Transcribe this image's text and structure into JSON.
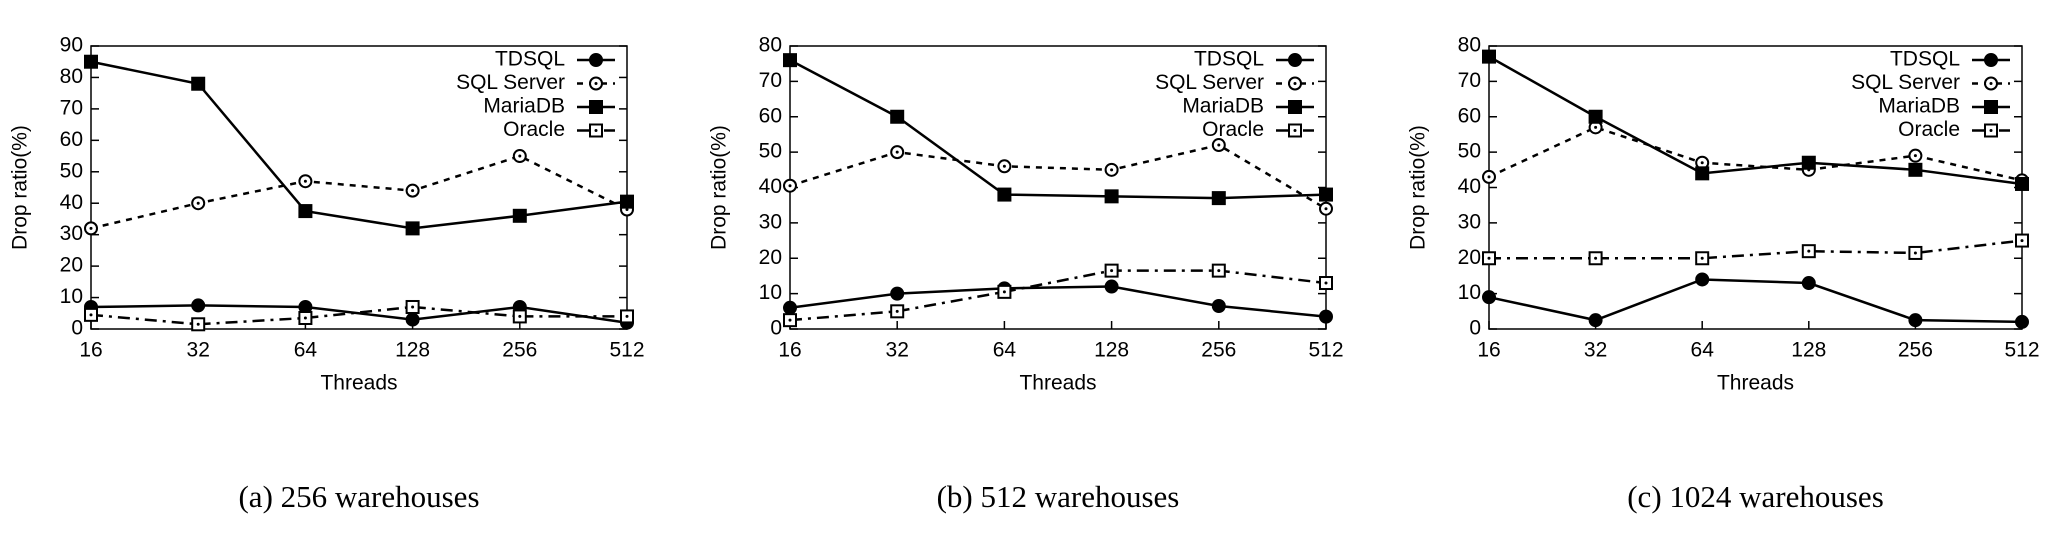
{
  "chart_data": [
    {
      "type": "line",
      "caption": "(a) 256 warehouses",
      "xlabel": "Threads",
      "ylabel": "Drop ratio(%)",
      "categories": [
        "16",
        "32",
        "64",
        "128",
        "256",
        "512"
      ],
      "ylim": [
        0,
        90
      ],
      "yticks": [
        0,
        10,
        20,
        30,
        40,
        50,
        60,
        70,
        80,
        90
      ],
      "legend": "upper right",
      "series": [
        {
          "name": "TDSQL",
          "color": "#000000",
          "dash": "solid",
          "marker": "circle-filled",
          "values": [
            7,
            7.5,
            7,
            3,
            7,
            2
          ]
        },
        {
          "name": "SQL Server",
          "color": "#000000",
          "dash": "dashed",
          "marker": "circle-open",
          "values": [
            32,
            40,
            47,
            44,
            55,
            38
          ]
        },
        {
          "name": "MariaDB",
          "color": "#000000",
          "dash": "solid",
          "marker": "square-filled",
          "values": [
            85,
            78,
            37.5,
            32,
            36,
            40.5
          ]
        },
        {
          "name": "Oracle",
          "color": "#000000",
          "dash": "dashdot",
          "marker": "square-open",
          "values": [
            4.5,
            1.5,
            3.5,
            7,
            4,
            4
          ]
        }
      ]
    },
    {
      "type": "line",
      "caption": "(b) 512 warehouses",
      "xlabel": "Threads",
      "ylabel": "Drop ratio(%)",
      "categories": [
        "16",
        "32",
        "64",
        "128",
        "256",
        "512"
      ],
      "ylim": [
        0,
        80
      ],
      "yticks": [
        0,
        10,
        20,
        30,
        40,
        50,
        60,
        70,
        80
      ],
      "legend": "upper right",
      "series": [
        {
          "name": "TDSQL",
          "color": "#000000",
          "dash": "solid",
          "marker": "circle-filled",
          "values": [
            6,
            10,
            11.5,
            12,
            6.5,
            3.5
          ]
        },
        {
          "name": "SQL Server",
          "color": "#000000",
          "dash": "dashed",
          "marker": "circle-open",
          "values": [
            40.5,
            50,
            46,
            45,
            52,
            34
          ]
        },
        {
          "name": "MariaDB",
          "color": "#000000",
          "dash": "solid",
          "marker": "square-filled",
          "values": [
            76,
            60,
            38,
            37.5,
            37,
            38
          ]
        },
        {
          "name": "Oracle",
          "color": "#000000",
          "dash": "dashdot",
          "marker": "square-open",
          "values": [
            2.5,
            5,
            10.5,
            16.5,
            16.5,
            13
          ]
        }
      ]
    },
    {
      "type": "line",
      "caption": "(c) 1024 warehouses",
      "xlabel": "Threads",
      "ylabel": "Drop ratio(%)",
      "categories": [
        "16",
        "32",
        "64",
        "128",
        "256",
        "512"
      ],
      "ylim": [
        0,
        80
      ],
      "yticks": [
        0,
        10,
        20,
        30,
        40,
        50,
        60,
        70,
        80
      ],
      "legend": "upper right",
      "series": [
        {
          "name": "TDSQL",
          "color": "#000000",
          "dash": "solid",
          "marker": "circle-filled",
          "values": [
            9,
            2.5,
            14,
            13,
            2.5,
            2
          ]
        },
        {
          "name": "SQL Server",
          "color": "#000000",
          "dash": "dashed",
          "marker": "circle-open",
          "values": [
            43,
            57,
            47,
            45,
            49,
            42
          ]
        },
        {
          "name": "MariaDB",
          "color": "#000000",
          "dash": "solid",
          "marker": "square-filled",
          "values": [
            77,
            60,
            44,
            47,
            45,
            41
          ]
        },
        {
          "name": "Oracle",
          "color": "#000000",
          "dash": "dashdot",
          "marker": "square-open",
          "values": [
            20,
            20,
            20,
            22,
            21.5,
            25
          ]
        }
      ]
    }
  ]
}
